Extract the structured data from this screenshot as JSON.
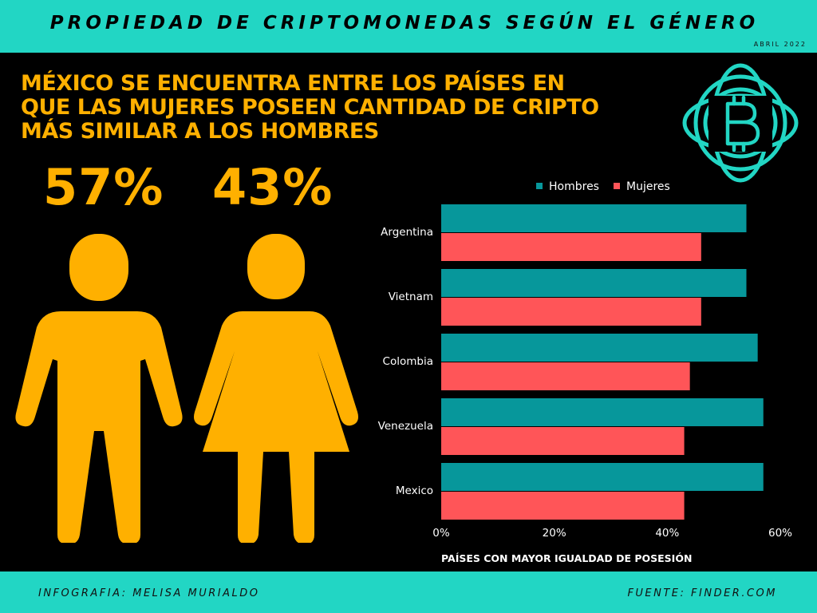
{
  "header": {
    "title": "PROPIEDAD DE CRIPTOMONEDAS SEGÚN EL GÉNERO",
    "date": "ABRIL 2022"
  },
  "headline": {
    "line1": "MÉXICO SE ENCUENTRA ENTRE LOS PAÍSES EN",
    "line2": "QUE LAS MUJERES POSEEN CANTIDAD DE CRIPTO",
    "line3": "MÁS SIMILAR A LOS HOMBRES"
  },
  "stats": {
    "men": "57%",
    "women": "43%"
  },
  "footer": {
    "credit": "INFOGRAFIA: MELISA MURIALDO",
    "source": "FUENTE: FINDER.COM"
  },
  "icons": {
    "logo": "bitcoin-orbit-icon",
    "men": "man-icon",
    "women": "woman-icon"
  },
  "colors": {
    "accent": "#22d6c4",
    "yellow": "#ffb000",
    "men": "#07979b",
    "women": "#ff5558"
  },
  "chart_data": {
    "type": "bar",
    "orientation": "horizontal",
    "categories": [
      "Argentina",
      "Vietnam",
      "Colombia",
      "Venezuela",
      "Mexico"
    ],
    "series": [
      {
        "name": "Hombres",
        "color": "#07979b",
        "values": [
          54,
          54,
          56,
          57,
          57
        ]
      },
      {
        "name": "Mujeres",
        "color": "#ff5558",
        "values": [
          46,
          46,
          44,
          43,
          43
        ]
      }
    ],
    "xlim": [
      0,
      60
    ],
    "xticks": [
      "0%",
      "20%",
      "40%",
      "60%"
    ],
    "xlabel": "PAÍSES CON MAYOR IGUALDAD DE POSESIÓN",
    "legend": "top-center"
  }
}
